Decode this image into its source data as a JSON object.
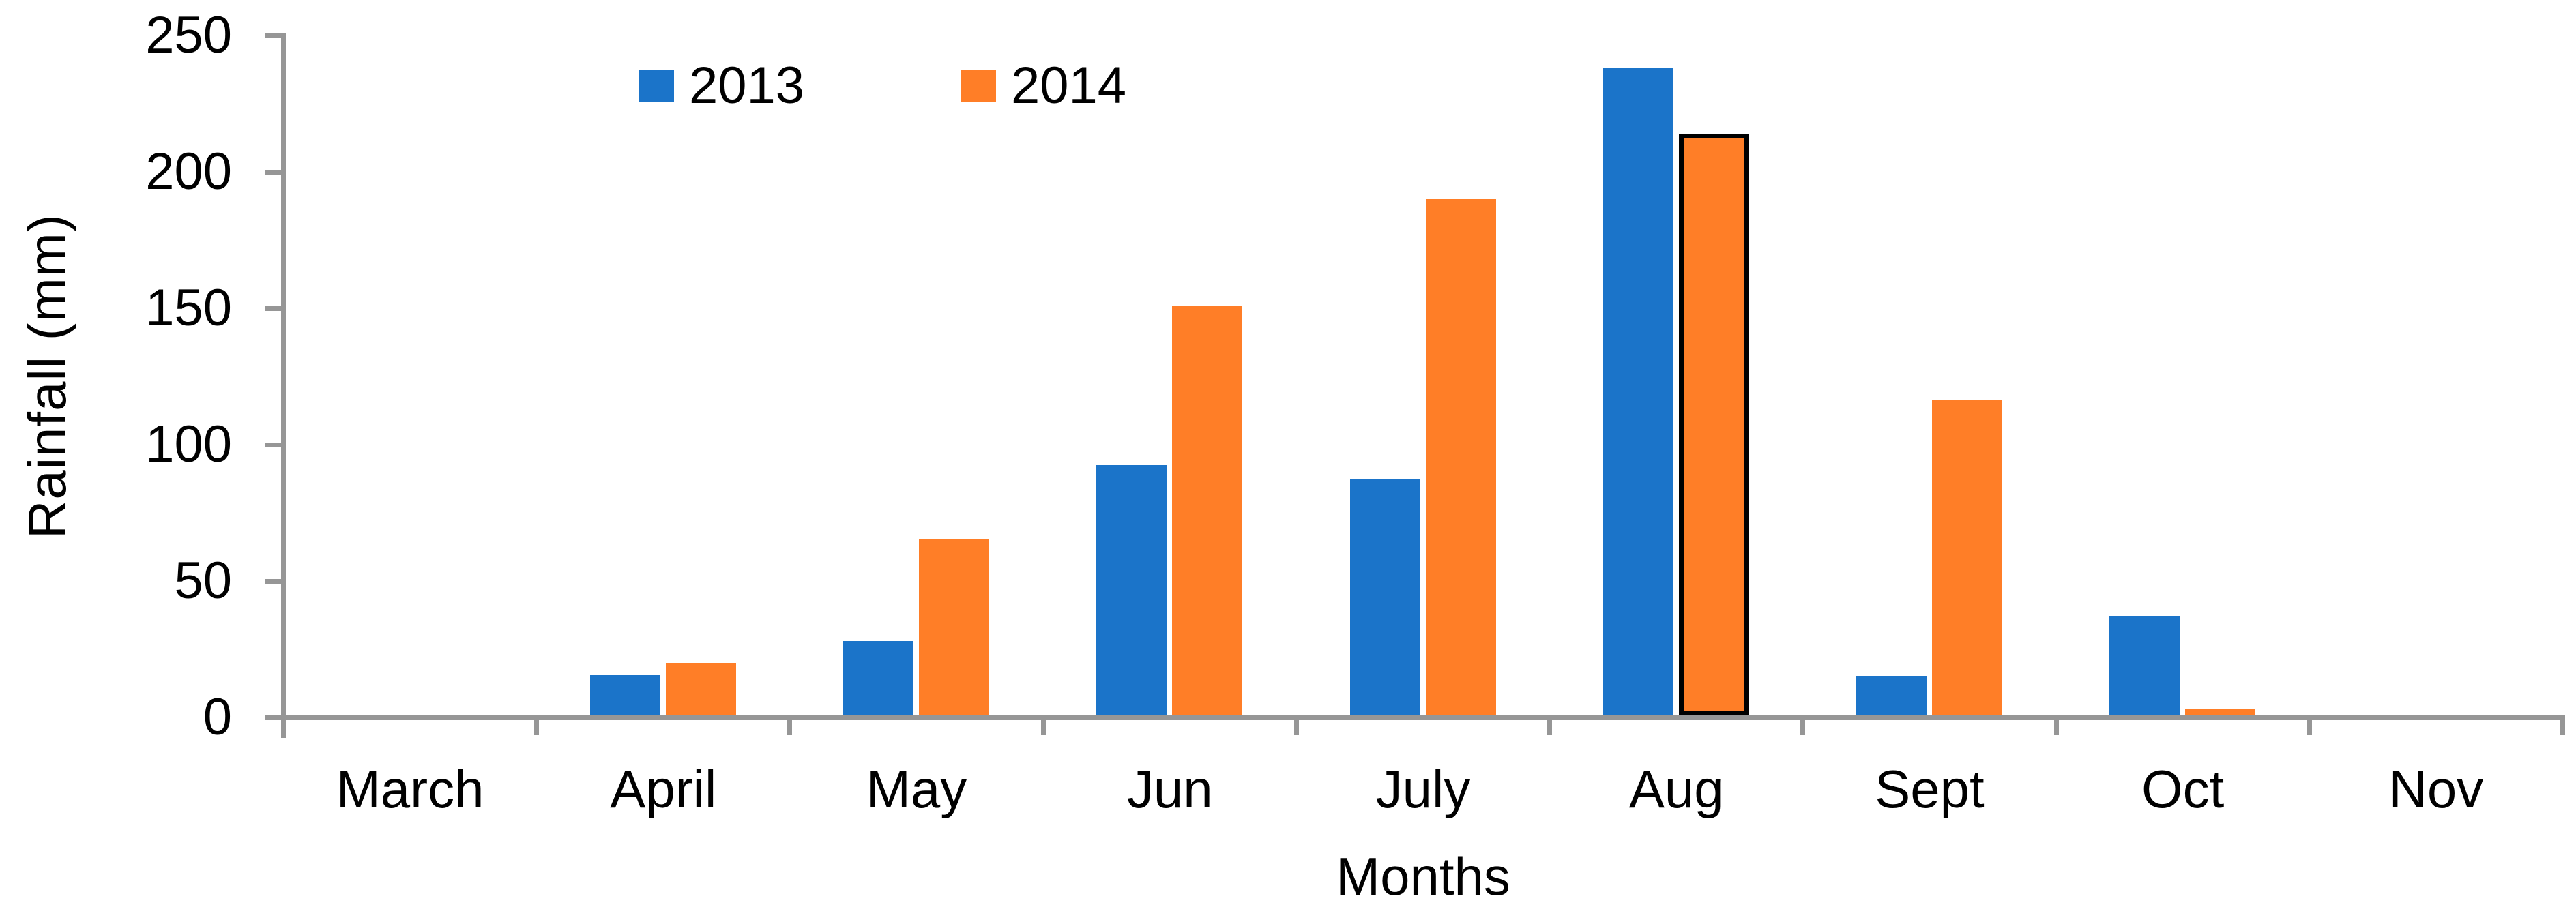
{
  "chart_data": {
    "type": "bar",
    "title": "",
    "xlabel": "Months",
    "ylabel": "Rainfall (mm)",
    "categories": [
      "March",
      "April",
      "May",
      "Jun",
      "July",
      "Aug",
      "Sept",
      "Oct",
      "Nov"
    ],
    "series": [
      {
        "name": "2013",
        "color": "#1B74C9",
        "values": [
          0,
          15.5,
          28,
          92.5,
          87.5,
          238,
          15,
          37,
          0
        ]
      },
      {
        "name": "2014",
        "color": "#FF7E27",
        "values": [
          0,
          20,
          65.5,
          151,
          190,
          214,
          116.5,
          3,
          0
        ]
      }
    ],
    "highlight": {
      "series": "2014",
      "category": "Aug",
      "border_color": "#000000"
    },
    "y_axis": {
      "ticks": [
        0,
        50,
        100,
        150,
        200,
        250
      ],
      "range": [
        0,
        250
      ]
    },
    "axis_color": "#969696",
    "background_color": "#FFFFFF",
    "grid": false,
    "legend_position": "top-inside"
  }
}
